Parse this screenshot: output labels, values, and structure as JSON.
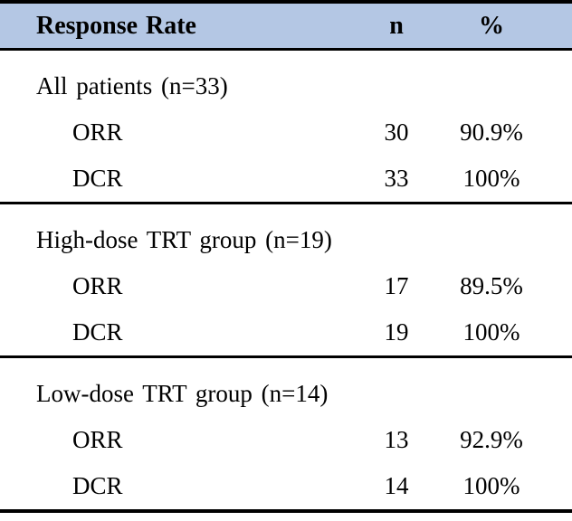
{
  "table": {
    "header": {
      "label": "Response Rate",
      "n": "n",
      "pct": "%"
    },
    "sections": [
      {
        "group": "All patients (n=33)",
        "rows": [
          {
            "label": "ORR",
            "n": "30",
            "pct": "90.9%"
          },
          {
            "label": "DCR",
            "n": "33",
            "pct": "100%"
          }
        ]
      },
      {
        "group": "High-dose TRT group (n=19)",
        "rows": [
          {
            "label": "ORR",
            "n": "17",
            "pct": "89.5%"
          },
          {
            "label": "DCR",
            "n": "19",
            "pct": "100%"
          }
        ]
      },
      {
        "group": "Low-dose TRT group (n=14)",
        "rows": [
          {
            "label": "ORR",
            "n": "13",
            "pct": "92.9%"
          },
          {
            "label": "DCR",
            "n": "14",
            "pct": "100%"
          }
        ]
      }
    ],
    "colors": {
      "header_bg": "#b4c7e4",
      "border_color": "#000000",
      "text": "#000000",
      "background": "#ffffff"
    }
  }
}
